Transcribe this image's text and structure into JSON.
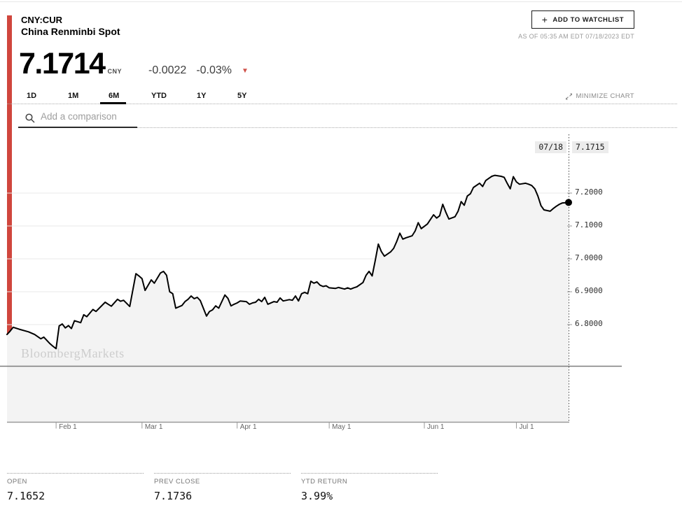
{
  "header": {
    "ticker": "CNY:CUR",
    "name": "China Renminbi Spot",
    "plus": "+",
    "watchlist_label": "ADD TO WATCHLIST",
    "as_of": "AS OF 05:35 AM EDT 07/18/2023 EDT"
  },
  "quote": {
    "price": "7.1714",
    "currency": "CNY",
    "change": "-0.0022",
    "change_pct": "-0.03%",
    "down_triangle": "▼"
  },
  "toolbar": {
    "ranges": [
      {
        "label": "1D",
        "active": false
      },
      {
        "label": "1M",
        "active": false
      },
      {
        "label": "6M",
        "active": true
      },
      {
        "label": "YTD",
        "active": false
      },
      {
        "label": "1Y",
        "active": false
      },
      {
        "label": "5Y",
        "active": false
      }
    ],
    "minimize_label": "MINIMIZE CHART",
    "compare_placeholder": "Add a comparison"
  },
  "chart_data": {
    "type": "area",
    "series_name": "CNY:CUR price",
    "watermark": "BloombergMarkets",
    "end_marker": {
      "date": "07/18",
      "value": "7.1715"
    },
    "y_ticks": [
      {
        "value": 7.2,
        "label": "7.2000"
      },
      {
        "value": 7.1,
        "label": "7.1000"
      },
      {
        "value": 7.0,
        "label": "7.0000"
      },
      {
        "value": 6.9,
        "label": "6.9000"
      },
      {
        "value": 6.8,
        "label": "6.8000"
      }
    ],
    "x_ticks": [
      {
        "offset": 16,
        "label": "Feb 1"
      },
      {
        "offset": 44,
        "label": "Mar 1"
      },
      {
        "offset": 75,
        "label": "Apr 1"
      },
      {
        "offset": 105,
        "label": "May 1"
      },
      {
        "offset": 136,
        "label": "Jun 1"
      },
      {
        "offset": 166,
        "label": "Jul 1"
      }
    ],
    "x_domain_days": 183,
    "points": [
      [
        0,
        6.77
      ],
      [
        1,
        6.78
      ],
      [
        2,
        6.792
      ],
      [
        4,
        6.786
      ],
      [
        7,
        6.778
      ],
      [
        9,
        6.77
      ],
      [
        11,
        6.757
      ],
      [
        12,
        6.762
      ],
      [
        14,
        6.742
      ],
      [
        15,
        6.734
      ],
      [
        16,
        6.727
      ],
      [
        17,
        6.796
      ],
      [
        18,
        6.802
      ],
      [
        19,
        6.79
      ],
      [
        20,
        6.797
      ],
      [
        21,
        6.788
      ],
      [
        22,
        6.812
      ],
      [
        24,
        6.806
      ],
      [
        25,
        6.83
      ],
      [
        26,
        6.824
      ],
      [
        28,
        6.846
      ],
      [
        29,
        6.84
      ],
      [
        32,
        6.868
      ],
      [
        33,
        6.862
      ],
      [
        34,
        6.856
      ],
      [
        36,
        6.877
      ],
      [
        37,
        6.871
      ],
      [
        38,
        6.874
      ],
      [
        40,
        6.855
      ],
      [
        42,
        6.955
      ],
      [
        43,
        6.948
      ],
      [
        44,
        6.94
      ],
      [
        45,
        6.904
      ],
      [
        47,
        6.936
      ],
      [
        48,
        6.926
      ],
      [
        50,
        6.957
      ],
      [
        51,
        6.962
      ],
      [
        52,
        6.95
      ],
      [
        53,
        6.9
      ],
      [
        54,
        6.894
      ],
      [
        55,
        6.85
      ],
      [
        57,
        6.858
      ],
      [
        58,
        6.87
      ],
      [
        59,
        6.877
      ],
      [
        60,
        6.887
      ],
      [
        61,
        6.879
      ],
      [
        62,
        6.883
      ],
      [
        63,
        6.873
      ],
      [
        65,
        6.826
      ],
      [
        66,
        6.84
      ],
      [
        67,
        6.845
      ],
      [
        68,
        6.857
      ],
      [
        69,
        6.85
      ],
      [
        71,
        6.89
      ],
      [
        72,
        6.88
      ],
      [
        73,
        6.857
      ],
      [
        74,
        6.862
      ],
      [
        75,
        6.866
      ],
      [
        76,
        6.872
      ],
      [
        78,
        6.87
      ],
      [
        79,
        6.862
      ],
      [
        80,
        6.866
      ],
      [
        81,
        6.868
      ],
      [
        82,
        6.877
      ],
      [
        83,
        6.87
      ],
      [
        84,
        6.883
      ],
      [
        85,
        6.862
      ],
      [
        87,
        6.87
      ],
      [
        88,
        6.868
      ],
      [
        89,
        6.881
      ],
      [
        90,
        6.872
      ],
      [
        92,
        6.876
      ],
      [
        93,
        6.874
      ],
      [
        94,
        6.887
      ],
      [
        95,
        6.872
      ],
      [
        96,
        6.894
      ],
      [
        97,
        6.898
      ],
      [
        98,
        6.894
      ],
      [
        99,
        6.932
      ],
      [
        100,
        6.926
      ],
      [
        101,
        6.93
      ],
      [
        102,
        6.92
      ],
      [
        103,
        6.916
      ],
      [
        104,
        6.918
      ],
      [
        105,
        6.912
      ],
      [
        107,
        6.91
      ],
      [
        108,
        6.913
      ],
      [
        110,
        6.908
      ],
      [
        111,
        6.912
      ],
      [
        112,
        6.908
      ],
      [
        113,
        6.912
      ],
      [
        114,
        6.915
      ],
      [
        116,
        6.928
      ],
      [
        117,
        6.95
      ],
      [
        118,
        6.962
      ],
      [
        119,
        6.948
      ],
      [
        120,
        6.995
      ],
      [
        121,
        7.045
      ],
      [
        122,
        7.022
      ],
      [
        123,
        7.008
      ],
      [
        125,
        7.021
      ],
      [
        126,
        7.032
      ],
      [
        127,
        7.053
      ],
      [
        128,
        7.078
      ],
      [
        129,
        7.06
      ],
      [
        130,
        7.064
      ],
      [
        132,
        7.07
      ],
      [
        133,
        7.085
      ],
      [
        134,
        7.11
      ],
      [
        135,
        7.092
      ],
      [
        137,
        7.106
      ],
      [
        138,
        7.12
      ],
      [
        139,
        7.134
      ],
      [
        140,
        7.124
      ],
      [
        141,
        7.131
      ],
      [
        142,
        7.166
      ],
      [
        143,
        7.142
      ],
      [
        144,
        7.121
      ],
      [
        146,
        7.128
      ],
      [
        147,
        7.145
      ],
      [
        148,
        7.174
      ],
      [
        149,
        7.163
      ],
      [
        150,
        7.191
      ],
      [
        151,
        7.198
      ],
      [
        152,
        7.217
      ],
      [
        154,
        7.23
      ],
      [
        155,
        7.22
      ],
      [
        156,
        7.238
      ],
      [
        157,
        7.245
      ],
      [
        158,
        7.251
      ],
      [
        159,
        7.254
      ],
      [
        161,
        7.251
      ],
      [
        162,
        7.248
      ],
      [
        163,
        7.23
      ],
      [
        164,
        7.213
      ],
      [
        165,
        7.25
      ],
      [
        166,
        7.234
      ],
      [
        167,
        7.227
      ],
      [
        169,
        7.23
      ],
      [
        170,
        7.227
      ],
      [
        171,
        7.223
      ],
      [
        172,
        7.213
      ],
      [
        173,
        7.191
      ],
      [
        174,
        7.162
      ],
      [
        175,
        7.149
      ],
      [
        177,
        7.145
      ],
      [
        178,
        7.153
      ],
      [
        179,
        7.16
      ],
      [
        180,
        7.166
      ],
      [
        181,
        7.17
      ],
      [
        183,
        7.1715
      ]
    ]
  },
  "stats": [
    {
      "label": "OPEN",
      "value": "7.1652"
    },
    {
      "label": "PREV CLOSE",
      "value": "7.1736"
    },
    {
      "label": "YTD RETURN",
      "value": "3.99%"
    }
  ]
}
